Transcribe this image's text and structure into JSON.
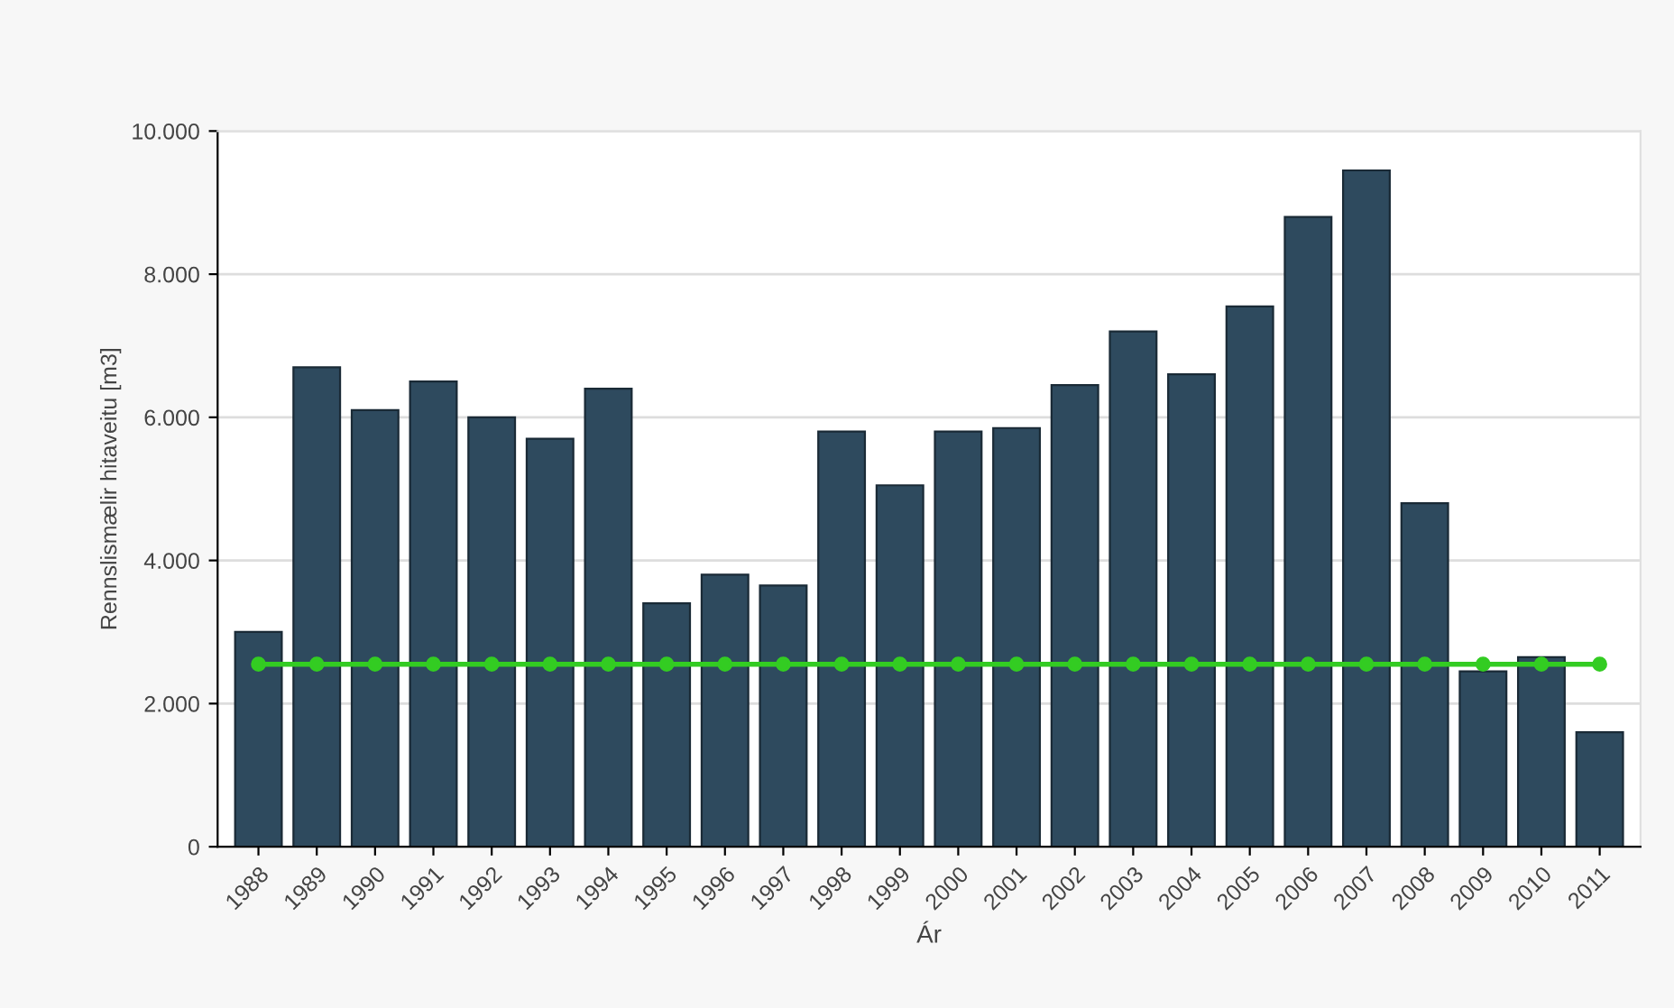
{
  "chart_data": {
    "type": "bar",
    "xlabel": "Ár",
    "ylabel": "Rennslismælir hitaveitu [m3]",
    "categories": [
      "1988",
      "1989",
      "1990",
      "1991",
      "1992",
      "1993",
      "1994",
      "1995",
      "1996",
      "1997",
      "1998",
      "1999",
      "2000",
      "2001",
      "2002",
      "2003",
      "2004",
      "2005",
      "2006",
      "2007",
      "2008",
      "2009",
      "2010",
      "2011"
    ],
    "series": [
      {
        "color": "#2e4a5e",
        "values": [
          3000,
          6700,
          6100,
          6500,
          6000,
          5700,
          6400,
          3400,
          3800,
          3650,
          5800,
          5050,
          5800,
          5850,
          6450,
          7200,
          6600,
          7550,
          8800,
          9450,
          4800,
          2450,
          2650,
          1600
        ]
      },
      {
        "type": "line",
        "color": "#33cc22",
        "marker": "circle",
        "values": [
          2550,
          2550,
          2550,
          2550,
          2550,
          2550,
          2550,
          2550,
          2550,
          2550,
          2550,
          2550,
          2550,
          2550,
          2550,
          2550,
          2550,
          2550,
          2550,
          2550,
          2550,
          2550,
          2550,
          2550
        ]
      }
    ],
    "ylim": [
      0,
      10000
    ],
    "yticks": [
      0,
      {
        "value": 2000,
        "label": "2.000"
      },
      {
        "value": 4000,
        "label": "4.000"
      },
      {
        "value": 6000,
        "label": "6.000"
      },
      {
        "value": 8000,
        "label": "8.000"
      },
      {
        "value": 10000,
        "label": "10.000"
      }
    ],
    "grid": "y",
    "legend": false
  }
}
